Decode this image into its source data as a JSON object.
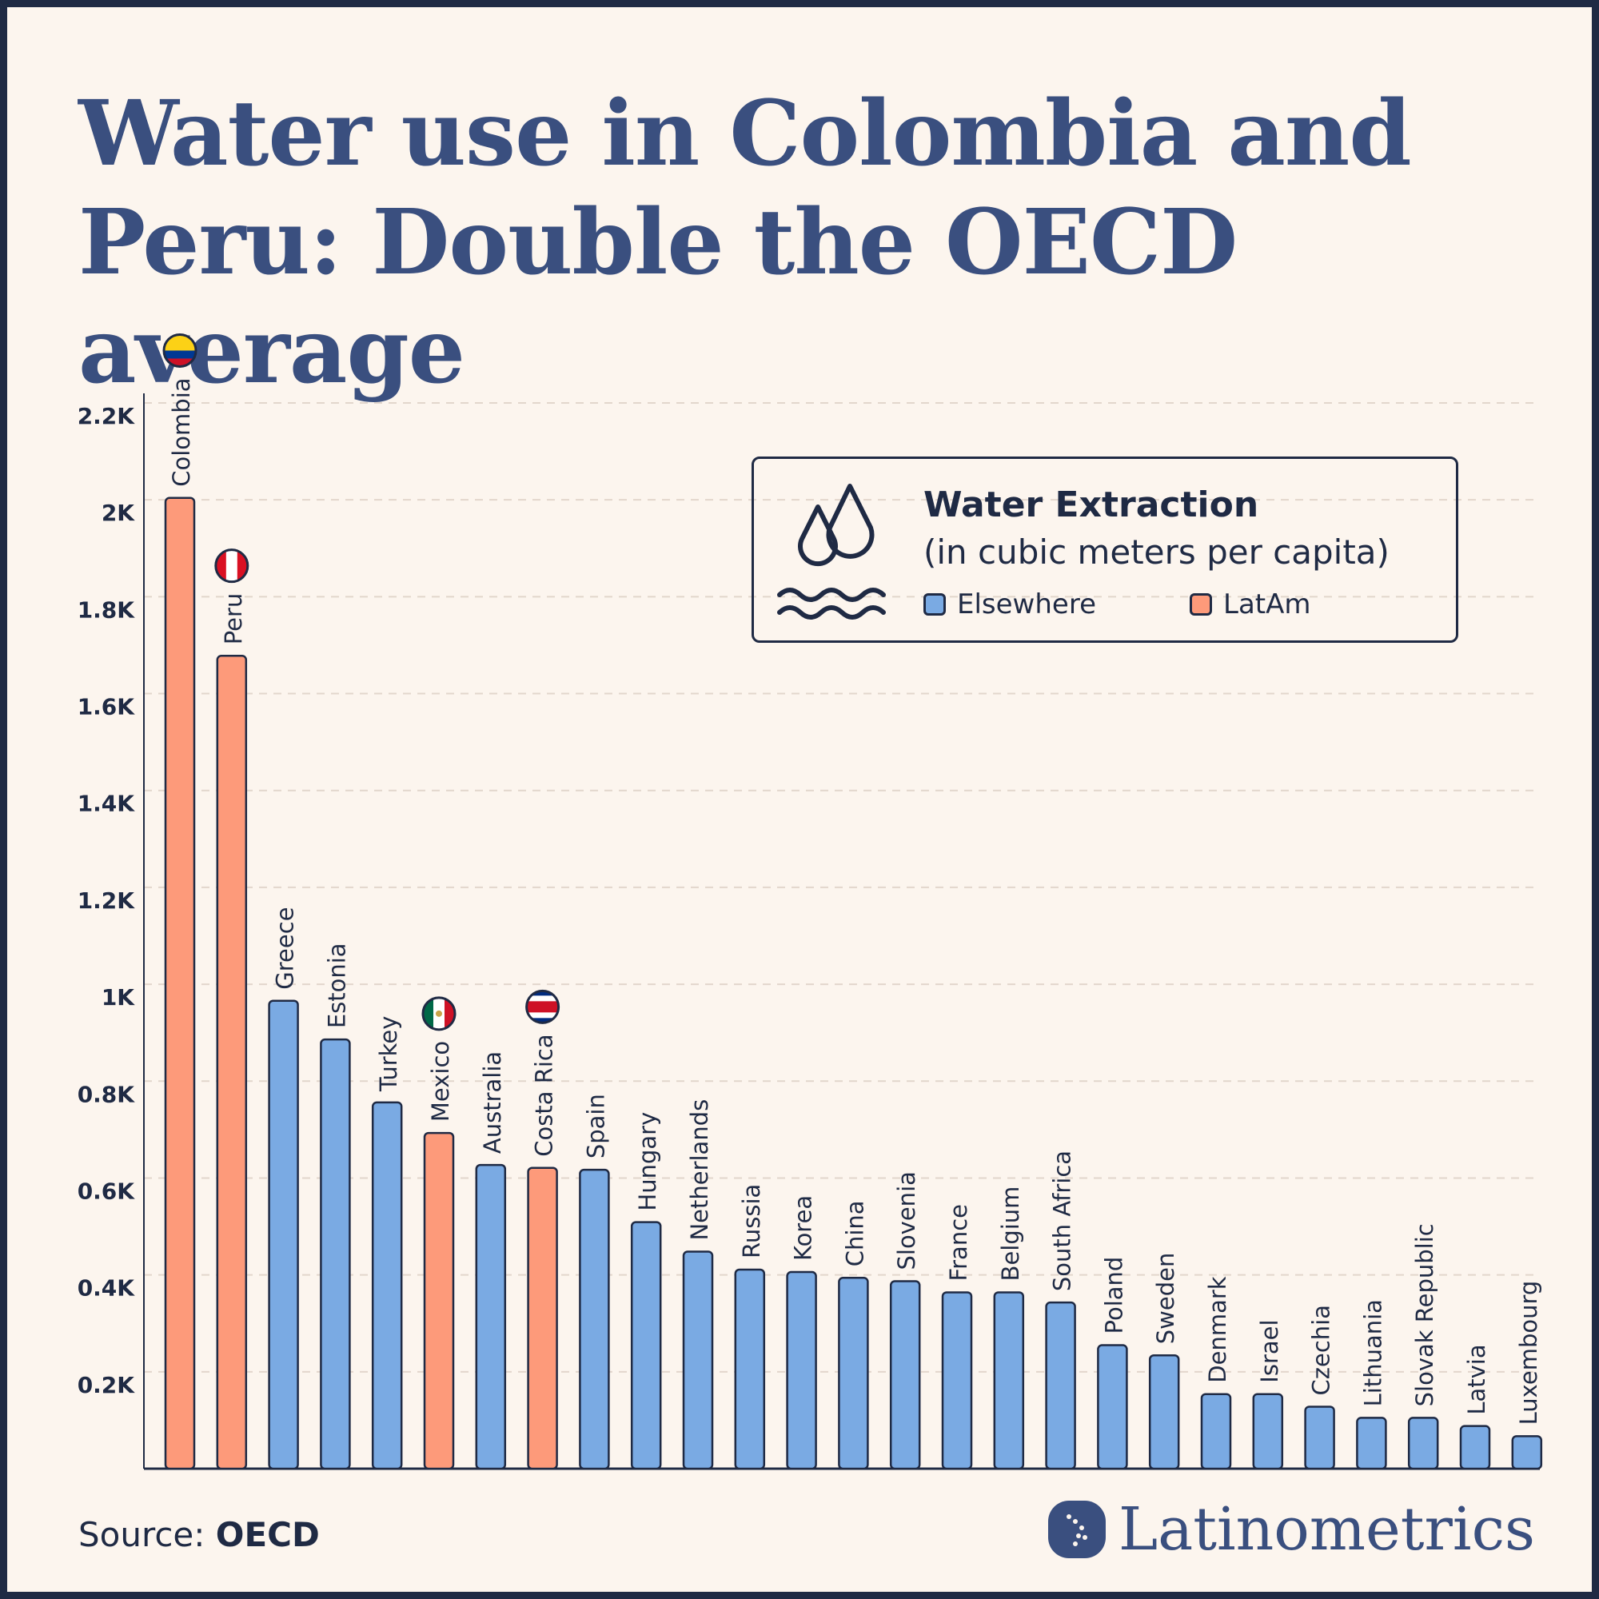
{
  "title": "Water use in Colombia and Peru: Double the OECD average",
  "legend": {
    "title": "Water Extraction",
    "subtitle": "(in cubic meters per capita)",
    "items": [
      {
        "label": "Elsewhere",
        "color": "#7aaae3"
      },
      {
        "label": "LatAm",
        "color": "#fd9a7a"
      }
    ],
    "icon": "water-drops-waves-icon"
  },
  "source": {
    "label": "Source:",
    "value": "OECD"
  },
  "brand": "Latinometrics",
  "chart_data": {
    "type": "bar",
    "title": "Water use in Colombia and Peru: Double the OECD average",
    "ylabel": "",
    "xlabel": "",
    "ylim": [
      0,
      2200
    ],
    "yticks": [
      {
        "v": 200,
        "l": "0.2K"
      },
      {
        "v": 400,
        "l": "0.4K"
      },
      {
        "v": 600,
        "l": "0.6K"
      },
      {
        "v": 800,
        "l": "0.8K"
      },
      {
        "v": 1000,
        "l": "1K"
      },
      {
        "v": 1200,
        "l": "1.2K"
      },
      {
        "v": 1400,
        "l": "1.4K"
      },
      {
        "v": 1600,
        "l": "1.6K"
      },
      {
        "v": 1800,
        "l": "1.8K"
      },
      {
        "v": 2000,
        "l": "2K"
      },
      {
        "v": 2200,
        "l": "2.2K"
      }
    ],
    "grid": true,
    "legend_position": "top-right",
    "categories": [
      "Colombia",
      "Peru",
      "Greece",
      "Estonia",
      "Turkey",
      "Mexico",
      "Australia",
      "Costa Rica",
      "Spain",
      "Hungary",
      "Netherlands",
      "Russia",
      "Korea",
      "China",
      "Slovenia",
      "France",
      "Belgium",
      "South Africa",
      "Poland",
      "Sweden",
      "Denmark",
      "Israel",
      "Czechia",
      "Lithuania",
      "Slovak Republic",
      "Latvia",
      "Luxembourg"
    ],
    "values": [
      2004,
      1678,
      966,
      886,
      756,
      693,
      627,
      621,
      617,
      509,
      448,
      411,
      406,
      394,
      387,
      364,
      364,
      343,
      255,
      234,
      154,
      154,
      128,
      105,
      105,
      88,
      67
    ],
    "groups": [
      "LatAm",
      "LatAm",
      "Elsewhere",
      "Elsewhere",
      "Elsewhere",
      "LatAm",
      "Elsewhere",
      "LatAm",
      "Elsewhere",
      "Elsewhere",
      "Elsewhere",
      "Elsewhere",
      "Elsewhere",
      "Elsewhere",
      "Elsewhere",
      "Elsewhere",
      "Elsewhere",
      "Elsewhere",
      "Elsewhere",
      "Elsewhere",
      "Elsewhere",
      "Elsewhere",
      "Elsewhere",
      "Elsewhere",
      "Elsewhere",
      "Elsewhere",
      "Elsewhere"
    ],
    "flags": {
      "Colombia": "colombia-flag-icon",
      "Peru": "peru-flag-icon",
      "Mexico": "mexico-flag-icon",
      "Costa Rica": "costa-rica-flag-icon"
    }
  }
}
